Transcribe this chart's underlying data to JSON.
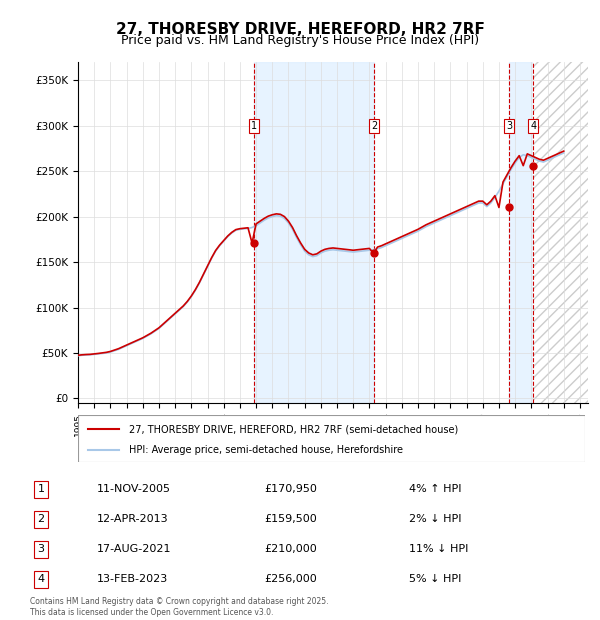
{
  "title": "27, THORESBY DRIVE, HEREFORD, HR2 7RF",
  "subtitle": "Price paid vs. HM Land Registry's House Price Index (HPI)",
  "footer": "Contains HM Land Registry data © Crown copyright and database right 2025.\nThis data is licensed under the Open Government Licence v3.0.",
  "legend_line1": "27, THORESBY DRIVE, HEREFORD, HR2 7RF (semi-detached house)",
  "legend_line2": "HPI: Average price, semi-detached house, Herefordshire",
  "transactions": [
    {
      "num": 1,
      "date": "11-NOV-2005",
      "price": 170950,
      "pct": "4%",
      "dir": "↑",
      "year_dec": 2005.87
    },
    {
      "num": 2,
      "date": "12-APR-2013",
      "price": 159500,
      "pct": "2%",
      "dir": "↓",
      "year_dec": 2013.28
    },
    {
      "num": 3,
      "date": "17-AUG-2021",
      "price": 210000,
      "pct": "11%",
      "dir": "↓",
      "year_dec": 2021.63
    },
    {
      "num": 4,
      "date": "13-FEB-2023",
      "price": 256000,
      "pct": "5%",
      "dir": "↓",
      "year_dec": 2023.12
    }
  ],
  "hpi_color": "#a8c8e8",
  "price_color": "#cc0000",
  "vline_color": "#cc0000",
  "shade_color": "#ddeeff",
  "hatch_color": "#cccccc",
  "ylabel_vals": [
    0,
    50000,
    100000,
    150000,
    200000,
    250000,
    300000,
    350000
  ],
  "ylabel_texts": [
    "£0",
    "£50K",
    "£100K",
    "£150K",
    "£200K",
    "£250K",
    "£300K",
    "£350K"
  ],
  "xmin": 1995.0,
  "xmax": 2026.5,
  "ymin": -5000,
  "ymax": 370000,
  "hpi_data": {
    "years": [
      1995.0,
      1995.25,
      1995.5,
      1995.75,
      1996.0,
      1996.25,
      1996.5,
      1996.75,
      1997.0,
      1997.25,
      1997.5,
      1997.75,
      1998.0,
      1998.25,
      1998.5,
      1998.75,
      1999.0,
      1999.25,
      1999.5,
      1999.75,
      2000.0,
      2000.25,
      2000.5,
      2000.75,
      2001.0,
      2001.25,
      2001.5,
      2001.75,
      2002.0,
      2002.25,
      2002.5,
      2002.75,
      2003.0,
      2003.25,
      2003.5,
      2003.75,
      2004.0,
      2004.25,
      2004.5,
      2004.75,
      2005.0,
      2005.25,
      2005.5,
      2005.75,
      2006.0,
      2006.25,
      2006.5,
      2006.75,
      2007.0,
      2007.25,
      2007.5,
      2007.75,
      2008.0,
      2008.25,
      2008.5,
      2008.75,
      2009.0,
      2009.25,
      2009.5,
      2009.75,
      2010.0,
      2010.25,
      2010.5,
      2010.75,
      2011.0,
      2011.25,
      2011.5,
      2011.75,
      2012.0,
      2012.25,
      2012.5,
      2012.75,
      2013.0,
      2013.25,
      2013.5,
      2013.75,
      2014.0,
      2014.25,
      2014.5,
      2014.75,
      2015.0,
      2015.25,
      2015.5,
      2015.75,
      2016.0,
      2016.25,
      2016.5,
      2016.75,
      2017.0,
      2017.25,
      2017.5,
      2017.75,
      2018.0,
      2018.25,
      2018.5,
      2018.75,
      2019.0,
      2019.25,
      2019.5,
      2019.75,
      2020.0,
      2020.25,
      2020.5,
      2020.75,
      2021.0,
      2021.25,
      2021.5,
      2021.75,
      2022.0,
      2022.25,
      2022.5,
      2022.75,
      2023.0,
      2023.25,
      2023.5,
      2023.75,
      2024.0,
      2024.25,
      2024.5,
      2024.75,
      2025.0
    ],
    "values": [
      47000,
      47500,
      47800,
      48000,
      48500,
      49000,
      49500,
      50000,
      51000,
      52500,
      54000,
      56000,
      58000,
      60000,
      62000,
      64000,
      66000,
      68500,
      71000,
      74000,
      77000,
      81000,
      85000,
      89000,
      93000,
      97000,
      101000,
      106000,
      112000,
      119000,
      127000,
      136000,
      145000,
      154000,
      162000,
      168000,
      173000,
      178000,
      182000,
      185000,
      186000,
      186500,
      187000,
      188000,
      190000,
      193000,
      196000,
      198500,
      200000,
      201000,
      200500,
      198000,
      193000,
      186000,
      177000,
      169000,
      162000,
      158000,
      156000,
      157000,
      160000,
      162000,
      163000,
      163500,
      163000,
      162500,
      162000,
      161500,
      161000,
      161500,
      162000,
      162500,
      163000,
      163500,
      164500,
      166000,
      168000,
      170000,
      172000,
      174000,
      176000,
      178000,
      180000,
      182000,
      184000,
      186500,
      189000,
      191000,
      193000,
      195000,
      197000,
      199000,
      201000,
      203000,
      205000,
      207000,
      209000,
      211000,
      213000,
      215000,
      215000,
      211000,
      215000,
      221000,
      228000,
      236000,
      244000,
      252000,
      259000,
      265000,
      268000,
      267000,
      265000,
      263000,
      261000,
      260000,
      262000,
      264000,
      266000,
      268000,
      270000
    ]
  },
  "price_data": {
    "years": [
      1995.0,
      1995.25,
      1995.5,
      1995.75,
      1996.0,
      1996.25,
      1996.5,
      1996.75,
      1997.0,
      1997.25,
      1997.5,
      1997.75,
      1998.0,
      1998.25,
      1998.5,
      1998.75,
      1999.0,
      1999.25,
      1999.5,
      1999.75,
      2000.0,
      2000.25,
      2000.5,
      2000.75,
      2001.0,
      2001.25,
      2001.5,
      2001.75,
      2002.0,
      2002.25,
      2002.5,
      2002.75,
      2003.0,
      2003.25,
      2003.5,
      2003.75,
      2004.0,
      2004.25,
      2004.5,
      2004.75,
      2005.0,
      2005.25,
      2005.5,
      2005.75,
      2006.0,
      2006.25,
      2006.5,
      2006.75,
      2007.0,
      2007.25,
      2007.5,
      2007.75,
      2008.0,
      2008.25,
      2008.5,
      2008.75,
      2009.0,
      2009.25,
      2009.5,
      2009.75,
      2010.0,
      2010.25,
      2010.5,
      2010.75,
      2011.0,
      2011.25,
      2011.5,
      2011.75,
      2012.0,
      2012.25,
      2012.5,
      2012.75,
      2013.0,
      2013.25,
      2013.5,
      2013.75,
      2014.0,
      2014.25,
      2014.5,
      2014.75,
      2015.0,
      2015.25,
      2015.5,
      2015.75,
      2016.0,
      2016.25,
      2016.5,
      2016.75,
      2017.0,
      2017.25,
      2017.5,
      2017.75,
      2018.0,
      2018.25,
      2018.5,
      2018.75,
      2019.0,
      2019.25,
      2019.5,
      2019.75,
      2020.0,
      2020.25,
      2020.5,
      2020.75,
      2021.0,
      2021.25,
      2021.5,
      2021.75,
      2022.0,
      2022.25,
      2022.5,
      2022.75,
      2023.0,
      2023.25,
      2023.5,
      2023.75,
      2024.0,
      2024.25,
      2024.5,
      2024.75,
      2025.0
    ],
    "values": [
      47500,
      48000,
      48300,
      48500,
      49000,
      49500,
      50100,
      50700,
      51700,
      53200,
      54700,
      56700,
      58700,
      60700,
      62700,
      64700,
      66700,
      69200,
      71700,
      74700,
      77700,
      81700,
      85700,
      89700,
      93700,
      97700,
      101700,
      106700,
      112700,
      119700,
      127700,
      136700,
      145700,
      154700,
      162700,
      168700,
      173700,
      178700,
      182700,
      185700,
      186700,
      187200,
      187700,
      170950,
      192000,
      195000,
      198000,
      200500,
      202000,
      203000,
      202500,
      200000,
      195000,
      188000,
      179000,
      171000,
      164000,
      160000,
      158000,
      159000,
      162000,
      164000,
      165000,
      165500,
      165000,
      164500,
      164000,
      163500,
      163000,
      163500,
      164000,
      164500,
      165000,
      159500,
      166500,
      168000,
      170000,
      172000,
      174000,
      176000,
      178000,
      180000,
      182000,
      184000,
      186000,
      188500,
      191000,
      193000,
      195000,
      197000,
      199000,
      201000,
      203000,
      205000,
      207000,
      209000,
      211000,
      213000,
      215000,
      217000,
      217000,
      213000,
      217000,
      223000,
      210000,
      238000,
      246000,
      254000,
      261000,
      267000,
      256000,
      269000,
      267000,
      265000,
      263000,
      262000,
      264000,
      266000,
      268000,
      270000,
      272000
    ]
  }
}
